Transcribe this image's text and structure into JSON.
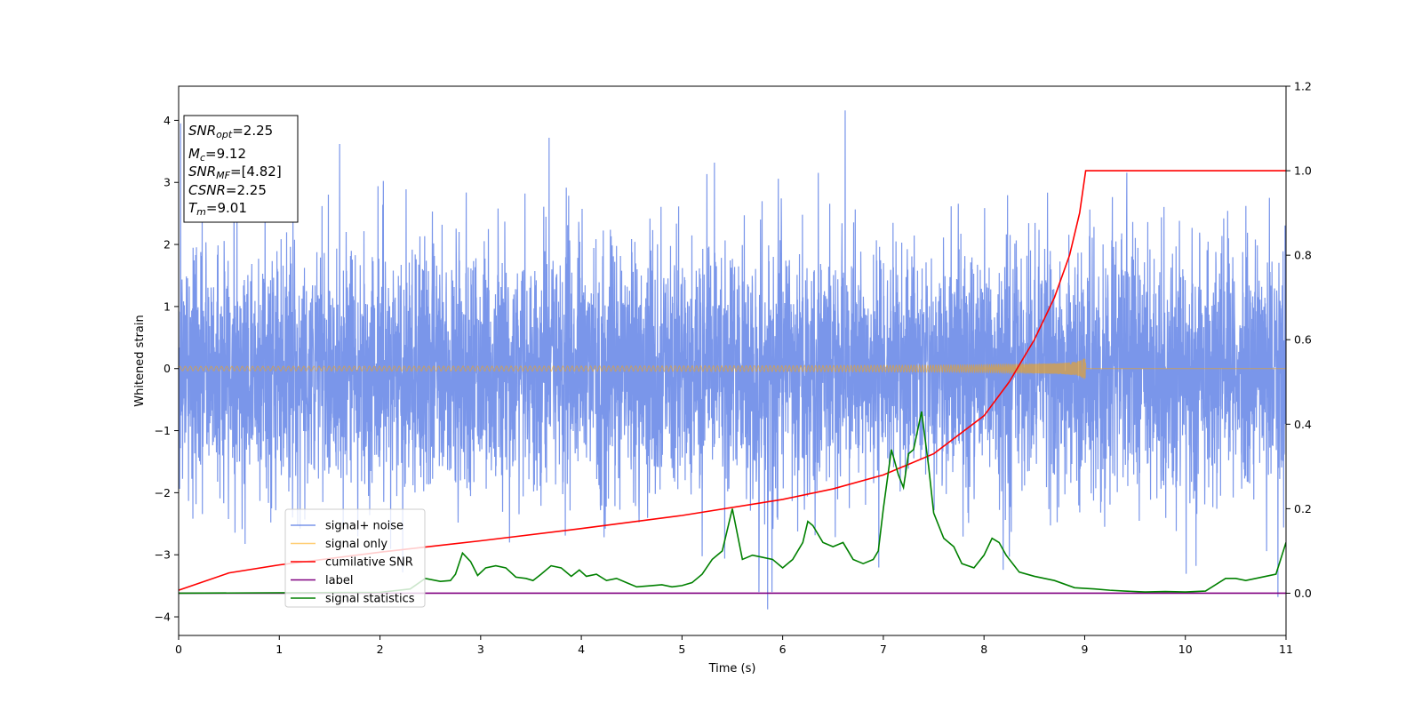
{
  "chart_data": {
    "type": "line",
    "title": "",
    "xlabel": "Time (s)",
    "ylabel": "Whitened strain",
    "xlim": [
      0,
      11
    ],
    "ylim": [
      -4.3,
      4.55
    ],
    "y2lim": [
      -0.1,
      1.2
    ],
    "x_ticks": [
      0,
      1,
      2,
      3,
      4,
      5,
      6,
      7,
      8,
      9,
      10,
      11
    ],
    "y_ticks": [
      -4,
      -3,
      -2,
      -1,
      0,
      1,
      2,
      3,
      4
    ],
    "y2_ticks": [
      "0.0",
      "0.2",
      "0.4",
      "0.6",
      "0.8",
      "1.0",
      "1.2"
    ],
    "grid": false,
    "legend_position": "lower-left",
    "info_box": {
      "snr_opt": {
        "sym": "SNR",
        "sub": "opt",
        "value": "=2.25"
      },
      "mc": {
        "sym": "M",
        "sub": "c",
        "value": "=9.12"
      },
      "snr_mf": {
        "sym": "SNR",
        "sub": "MF",
        "value": "=[4.82]"
      },
      "csnr": {
        "sym": "CSNR",
        "sub": "",
        "value": "=2.25"
      },
      "tm": {
        "sym": "T",
        "sub": "m",
        "value": "=9.01"
      }
    },
    "series": [
      {
        "name": "signal+ noise",
        "color": "#4169e1",
        "axis": "left",
        "kind": "noise",
        "std": 1.0,
        "extremes": [
          [
            6.62,
            4.16
          ],
          [
            5.85,
            -3.88
          ],
          [
            10.92,
            -3.68
          ],
          [
            1.6,
            3.62
          ],
          [
            3.68,
            3.72
          ],
          [
            0.02,
            3.95
          ]
        ]
      },
      {
        "name": "signal only",
        "color": "#ffa500",
        "axis": "left",
        "kind": "chirp",
        "merger_time": 9.01,
        "peak_amplitude": 0.28
      },
      {
        "name": "cumilative SNR",
        "color": "#ff0000",
        "axis": "right",
        "x": [
          0,
          0.5,
          1,
          2,
          3,
          4,
          5,
          6,
          6.5,
          7,
          7.5,
          8,
          8.25,
          8.5,
          8.7,
          8.85,
          8.95,
          9.01,
          9.02,
          11
        ],
        "values": [
          0.007,
          0.048,
          0.067,
          0.097,
          0.124,
          0.153,
          0.184,
          0.222,
          0.247,
          0.28,
          0.33,
          0.42,
          0.5,
          0.6,
          0.7,
          0.8,
          0.9,
          1.0,
          1.0,
          1.0
        ]
      },
      {
        "name": "label",
        "color": "#800080",
        "axis": "right",
        "x": [
          0,
          11
        ],
        "values": [
          0,
          0
        ]
      },
      {
        "name": "signal statistics",
        "color": "#008000",
        "axis": "right",
        "x": [
          0,
          2.0,
          2.3,
          2.45,
          2.6,
          2.7,
          2.75,
          2.82,
          2.9,
          2.97,
          3.05,
          3.15,
          3.25,
          3.35,
          3.45,
          3.52,
          3.6,
          3.7,
          3.8,
          3.9,
          3.98,
          4.05,
          4.15,
          4.25,
          4.35,
          4.45,
          4.55,
          4.7,
          4.8,
          4.9,
          5.0,
          5.1,
          5.2,
          5.3,
          5.4,
          5.5,
          5.6,
          5.7,
          5.8,
          5.9,
          6.0,
          6.1,
          6.2,
          6.25,
          6.3,
          6.4,
          6.5,
          6.6,
          6.7,
          6.8,
          6.9,
          6.95,
          7.0,
          7.08,
          7.15,
          7.2,
          7.25,
          7.3,
          7.38,
          7.45,
          7.5,
          7.6,
          7.7,
          7.78,
          7.9,
          8.0,
          8.08,
          8.15,
          8.22,
          8.35,
          8.5,
          8.6,
          8.7,
          8.9,
          9.1,
          9.25,
          9.4,
          9.6,
          9.8,
          10.0,
          10.2,
          10.3,
          10.4,
          10.5,
          10.6,
          10.7,
          10.8,
          10.9,
          11.0
        ],
        "values": [
          0,
          0.002,
          0.01,
          0.035,
          0.028,
          0.03,
          0.045,
          0.095,
          0.075,
          0.042,
          0.06,
          0.065,
          0.06,
          0.038,
          0.035,
          0.03,
          0.045,
          0.065,
          0.06,
          0.04,
          0.055,
          0.04,
          0.045,
          0.03,
          0.035,
          0.025,
          0.015,
          0.018,
          0.02,
          0.015,
          0.018,
          0.025,
          0.045,
          0.08,
          0.1,
          0.2,
          0.08,
          0.09,
          0.085,
          0.08,
          0.06,
          0.08,
          0.12,
          0.17,
          0.16,
          0.12,
          0.11,
          0.12,
          0.08,
          0.07,
          0.08,
          0.1,
          0.2,
          0.34,
          0.28,
          0.25,
          0.33,
          0.34,
          0.43,
          0.3,
          0.19,
          0.13,
          0.11,
          0.07,
          0.06,
          0.09,
          0.13,
          0.12,
          0.09,
          0.05,
          0.04,
          0.035,
          0.03,
          0.013,
          0.01,
          0.007,
          0.005,
          0.003,
          0.004,
          0.003,
          0.005,
          0.02,
          0.035,
          0.035,
          0.03,
          0.035,
          0.04,
          0.045,
          0.12
        ]
      }
    ]
  }
}
